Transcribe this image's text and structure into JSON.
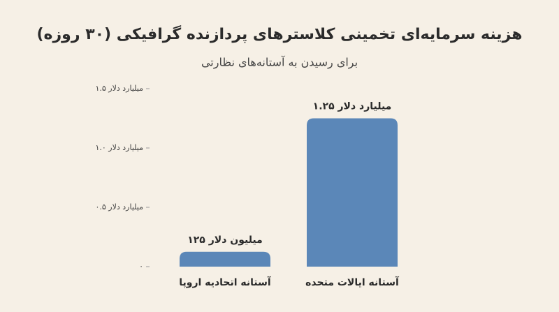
{
  "chart_data": {
    "type": "bar",
    "title": "هزینه سرمایه‌ای تخمینی کلاسترهای پردازنده گرافیکی (۳۰ روزه)",
    "subtitle": "برای رسیدن به آستانه‌های نظارتی",
    "categories": [
      "آستانه اتحادیه اروپا",
      "آستانه ایالات متحده"
    ],
    "values": [
      0.125,
      1.25
    ],
    "value_labels": [
      "۱۲۵ میلیون دلار",
      "۱.۲۵ میلیارد دلار"
    ],
    "color": "#5b87b8",
    "ylim": [
      0,
      1.5
    ],
    "yticks": [
      {
        "value": 0,
        "label": "۰"
      },
      {
        "value": 0.5,
        "label": "۰.۵ میلیارد دلار"
      },
      {
        "value": 1.0,
        "label": "۱.۰ میلیارد دلار"
      },
      {
        "value": 1.5,
        "label": "۱.۵ میلیارد دلار"
      }
    ],
    "grid": false
  }
}
